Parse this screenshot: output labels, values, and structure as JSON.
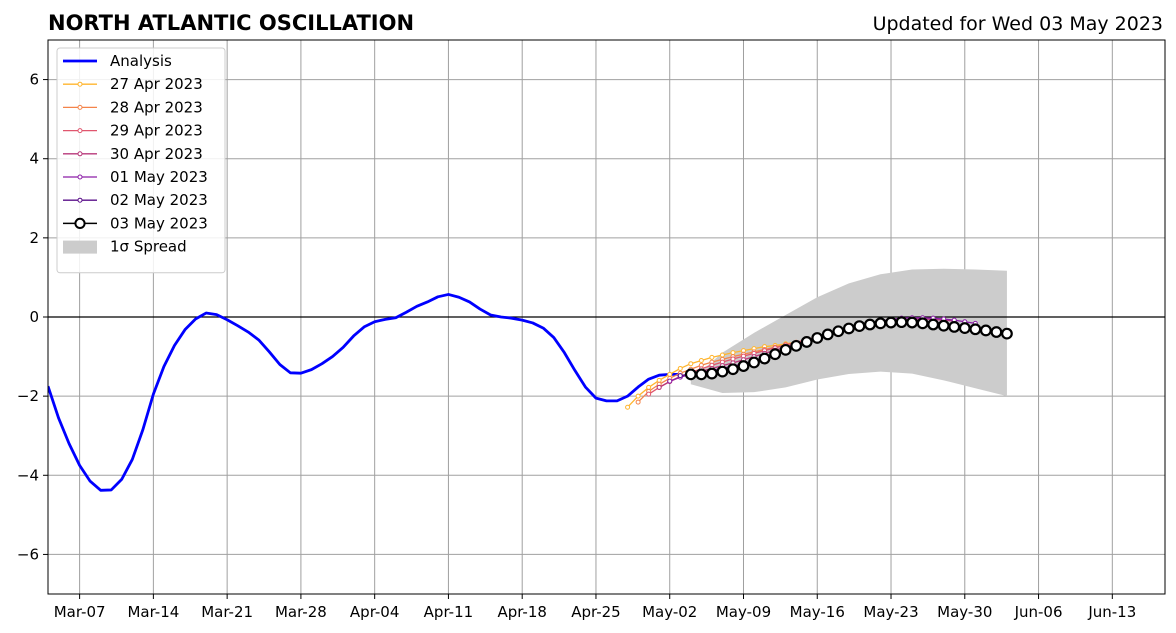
{
  "chart_data": {
    "type": "line",
    "title": "NORTH ATLANTIC OSCILLATION",
    "subtitle": "Updated for Wed 03 May 2023",
    "xlabel": "",
    "ylabel": "",
    "ylim": [
      -7,
      7
    ],
    "yticks": [
      -6,
      -4,
      -2,
      0,
      2,
      4,
      6
    ],
    "ytick_labels": [
      "−6",
      "−4",
      "−2",
      "0",
      "2",
      "4",
      "6"
    ],
    "xlim": [
      "2023-03-04",
      "2023-06-18"
    ],
    "xticks": [
      "2023-03-07",
      "2023-03-14",
      "2023-03-21",
      "2023-03-28",
      "2023-04-04",
      "2023-04-11",
      "2023-04-18",
      "2023-04-25",
      "2023-05-02",
      "2023-05-09",
      "2023-05-16",
      "2023-05-23",
      "2023-05-30",
      "2023-06-06",
      "2023-06-13"
    ],
    "xtick_labels": [
      "Mar-07",
      "Mar-14",
      "Mar-21",
      "Mar-28",
      "Apr-04",
      "Apr-11",
      "Apr-18",
      "Apr-25",
      "May-02",
      "May-09",
      "May-16",
      "May-23",
      "May-30",
      "Jun-06",
      "Jun-13"
    ],
    "grid": true,
    "legend_position": "upper-left",
    "zero_line": 0,
    "spread": {
      "name": "1σ Spread",
      "color": "#cccccc",
      "x": [
        "2023-05-04",
        "2023-05-07",
        "2023-05-10",
        "2023-05-13",
        "2023-05-16",
        "2023-05-19",
        "2023-05-22",
        "2023-05-25",
        "2023-05-28",
        "2023-05-31",
        "2023-06-03"
      ],
      "upper": [
        -1.6,
        -0.9,
        -0.4,
        0.05,
        0.5,
        0.85,
        1.08,
        1.2,
        1.22,
        1.2,
        1.17
      ],
      "lower": [
        -1.7,
        -1.92,
        -1.9,
        -1.78,
        -1.58,
        -1.44,
        -1.38,
        -1.43,
        -1.6,
        -1.8,
        -2.0
      ]
    },
    "series": [
      {
        "name": "Analysis",
        "color": "#0000ff",
        "style": "thick",
        "x": [
          "2023-03-04",
          "2023-03-05",
          "2023-03-06",
          "2023-03-07",
          "2023-03-08",
          "2023-03-09",
          "2023-03-10",
          "2023-03-11",
          "2023-03-12",
          "2023-03-13",
          "2023-03-14",
          "2023-03-15",
          "2023-03-16",
          "2023-03-17",
          "2023-03-18",
          "2023-03-19",
          "2023-03-20",
          "2023-03-21",
          "2023-03-22",
          "2023-03-23",
          "2023-03-24",
          "2023-03-25",
          "2023-03-26",
          "2023-03-27",
          "2023-03-28",
          "2023-03-29",
          "2023-03-30",
          "2023-03-31",
          "2023-04-01",
          "2023-04-02",
          "2023-04-03",
          "2023-04-04",
          "2023-04-05",
          "2023-04-06",
          "2023-04-07",
          "2023-04-08",
          "2023-04-09",
          "2023-04-10",
          "2023-04-11",
          "2023-04-12",
          "2023-04-13",
          "2023-04-14",
          "2023-04-15",
          "2023-04-16",
          "2023-04-17",
          "2023-04-18",
          "2023-04-19",
          "2023-04-20",
          "2023-04-21",
          "2023-04-22",
          "2023-04-23",
          "2023-04-24",
          "2023-04-25",
          "2023-04-26",
          "2023-04-27",
          "2023-04-28",
          "2023-04-29",
          "2023-04-30",
          "2023-05-01",
          "2023-05-02",
          "2023-05-03"
        ],
        "values": [
          -1.75,
          -2.55,
          -3.2,
          -3.75,
          -4.15,
          -4.38,
          -4.37,
          -4.1,
          -3.6,
          -2.85,
          -1.95,
          -1.25,
          -0.72,
          -0.32,
          -0.05,
          0.1,
          0.06,
          -0.07,
          -0.22,
          -0.38,
          -0.58,
          -0.88,
          -1.2,
          -1.41,
          -1.42,
          -1.33,
          -1.18,
          -1.0,
          -0.77,
          -0.48,
          -0.25,
          -0.12,
          -0.06,
          -0.02,
          0.12,
          0.27,
          0.38,
          0.51,
          0.57,
          0.5,
          0.38,
          0.2,
          0.05,
          0.0,
          -0.03,
          -0.08,
          -0.15,
          -0.28,
          -0.52,
          -0.9,
          -1.35,
          -1.77,
          -2.05,
          -2.12,
          -2.12,
          -2.0,
          -1.77,
          -1.57,
          -1.47,
          -1.45,
          -1.45
        ]
      },
      {
        "name": "27 Apr 2023",
        "color": "#ffb52e",
        "style": "small-marker",
        "x": [
          "2023-04-28",
          "2023-04-29",
          "2023-04-30",
          "2023-05-01",
          "2023-05-02",
          "2023-05-03",
          "2023-05-04",
          "2023-05-05",
          "2023-05-06",
          "2023-05-07",
          "2023-05-08",
          "2023-05-09",
          "2023-05-10",
          "2023-05-11",
          "2023-05-12",
          "2023-05-13",
          "2023-05-14",
          "2023-05-15",
          "2023-05-16"
        ],
        "values": [
          -2.28,
          -2.0,
          -1.78,
          -1.6,
          -1.45,
          -1.3,
          -1.18,
          -1.1,
          -1.02,
          -0.96,
          -0.9,
          -0.85,
          -0.8,
          -0.75,
          -0.72,
          -0.68,
          -0.64,
          -0.6,
          -0.58
        ]
      },
      {
        "name": "28 Apr 2023",
        "color": "#f4844a",
        "style": "small-marker",
        "x": [
          "2023-04-29",
          "2023-04-30",
          "2023-05-01",
          "2023-05-02",
          "2023-05-03",
          "2023-05-04",
          "2023-05-05",
          "2023-05-06",
          "2023-05-07",
          "2023-05-08",
          "2023-05-09",
          "2023-05-10",
          "2023-05-11",
          "2023-05-12",
          "2023-05-13",
          "2023-05-14",
          "2023-05-15",
          "2023-05-16",
          "2023-05-17",
          "2023-05-18",
          "2023-05-19",
          "2023-05-20",
          "2023-05-21",
          "2023-05-22",
          "2023-05-23"
        ],
        "values": [
          -2.15,
          -1.88,
          -1.7,
          -1.55,
          -1.42,
          -1.32,
          -1.22,
          -1.14,
          -1.07,
          -1.0,
          -0.94,
          -0.88,
          -0.82,
          -0.76,
          -0.7,
          -0.64,
          -0.58,
          -0.52,
          -0.46,
          -0.4,
          -0.34,
          -0.28,
          -0.22,
          -0.18,
          -0.15
        ]
      },
      {
        "name": "29 Apr 2023",
        "color": "#e0566e",
        "style": "small-marker",
        "x": [
          "2023-04-30",
          "2023-05-01",
          "2023-05-02",
          "2023-05-03",
          "2023-05-04",
          "2023-05-05",
          "2023-05-06",
          "2023-05-07",
          "2023-05-08",
          "2023-05-09",
          "2023-05-10",
          "2023-05-11",
          "2023-05-12",
          "2023-05-13",
          "2023-05-14",
          "2023-05-15",
          "2023-05-16",
          "2023-05-17",
          "2023-05-18",
          "2023-05-19",
          "2023-05-20",
          "2023-05-21",
          "2023-05-22",
          "2023-05-23",
          "2023-05-24",
          "2023-05-25",
          "2023-05-26"
        ],
        "values": [
          -1.95,
          -1.78,
          -1.63,
          -1.5,
          -1.4,
          -1.31,
          -1.22,
          -1.14,
          -1.06,
          -0.99,
          -0.92,
          -0.85,
          -0.78,
          -0.71,
          -0.64,
          -0.57,
          -0.5,
          -0.44,
          -0.38,
          -0.32,
          -0.27,
          -0.22,
          -0.18,
          -0.15,
          -0.12,
          -0.1,
          -0.09
        ]
      },
      {
        "name": "30 Apr 2023",
        "color": "#b73779",
        "style": "small-marker",
        "x": [
          "2023-05-01",
          "2023-05-02",
          "2023-05-03",
          "2023-05-04",
          "2023-05-05",
          "2023-05-06",
          "2023-05-07",
          "2023-05-08",
          "2023-05-09",
          "2023-05-10",
          "2023-05-11",
          "2023-05-12",
          "2023-05-13",
          "2023-05-14",
          "2023-05-15",
          "2023-05-16",
          "2023-05-17",
          "2023-05-18",
          "2023-05-19",
          "2023-05-20",
          "2023-05-21",
          "2023-05-22",
          "2023-05-23",
          "2023-05-24",
          "2023-05-25",
          "2023-05-26",
          "2023-05-27",
          "2023-05-28",
          "2023-05-29"
        ],
        "values": [
          -1.78,
          -1.63,
          -1.52,
          -1.44,
          -1.37,
          -1.3,
          -1.23,
          -1.16,
          -1.08,
          -1.0,
          -0.92,
          -0.84,
          -0.76,
          -0.68,
          -0.6,
          -0.52,
          -0.45,
          -0.38,
          -0.31,
          -0.25,
          -0.2,
          -0.15,
          -0.11,
          -0.08,
          -0.06,
          -0.05,
          -0.06,
          -0.08,
          -0.1
        ]
      },
      {
        "name": "01 May 2023",
        "color": "#8c1fa8",
        "style": "small-marker",
        "x": [
          "2023-05-02",
          "2023-05-03",
          "2023-05-04",
          "2023-05-05",
          "2023-05-06",
          "2023-05-07",
          "2023-05-08",
          "2023-05-09",
          "2023-05-10",
          "2023-05-11",
          "2023-05-12",
          "2023-05-13",
          "2023-05-14",
          "2023-05-15",
          "2023-05-16",
          "2023-05-17",
          "2023-05-18",
          "2023-05-19",
          "2023-05-20",
          "2023-05-21",
          "2023-05-22",
          "2023-05-23",
          "2023-05-24",
          "2023-05-25",
          "2023-05-26",
          "2023-05-27",
          "2023-05-28",
          "2023-05-29",
          "2023-05-30",
          "2023-05-31"
        ],
        "values": [
          -1.62,
          -1.52,
          -1.45,
          -1.4,
          -1.35,
          -1.3,
          -1.24,
          -1.18,
          -1.1,
          -1.02,
          -0.93,
          -0.84,
          -0.74,
          -0.64,
          -0.55,
          -0.45,
          -0.37,
          -0.29,
          -0.22,
          -0.16,
          -0.1,
          -0.06,
          -0.03,
          -0.02,
          -0.02,
          -0.03,
          -0.05,
          -0.08,
          -0.12,
          -0.16
        ]
      },
      {
        "name": "02 May 2023",
        "color": "#5a0f8a",
        "style": "small-marker",
        "x": [
          "2023-05-03",
          "2023-05-04",
          "2023-05-05",
          "2023-05-06",
          "2023-05-07",
          "2023-05-08",
          "2023-05-09",
          "2023-05-10",
          "2023-05-11",
          "2023-05-12",
          "2023-05-13",
          "2023-05-14",
          "2023-05-15",
          "2023-05-16",
          "2023-05-17",
          "2023-05-18",
          "2023-05-19",
          "2023-05-20",
          "2023-05-21",
          "2023-05-22",
          "2023-05-23",
          "2023-05-24",
          "2023-05-25",
          "2023-05-26",
          "2023-05-27",
          "2023-05-28",
          "2023-05-29",
          "2023-05-30",
          "2023-05-31",
          "2023-06-01"
        ],
        "values": [
          -1.48,
          -1.45,
          -1.43,
          -1.4,
          -1.36,
          -1.3,
          -1.22,
          -1.13,
          -1.03,
          -0.93,
          -0.83,
          -0.73,
          -0.63,
          -0.53,
          -0.44,
          -0.36,
          -0.29,
          -0.22,
          -0.17,
          -0.13,
          -0.1,
          -0.08,
          -0.08,
          -0.1,
          -0.13,
          -0.16,
          -0.2,
          -0.25,
          -0.3,
          -0.35
        ]
      },
      {
        "name": "03 May 2023",
        "color": "#000000",
        "style": "big-marker",
        "x": [
          "2023-05-04",
          "2023-05-05",
          "2023-05-06",
          "2023-05-07",
          "2023-05-08",
          "2023-05-09",
          "2023-05-10",
          "2023-05-11",
          "2023-05-12",
          "2023-05-13",
          "2023-05-14",
          "2023-05-15",
          "2023-05-16",
          "2023-05-17",
          "2023-05-18",
          "2023-05-19",
          "2023-05-20",
          "2023-05-21",
          "2023-05-22",
          "2023-05-23",
          "2023-05-24",
          "2023-05-25",
          "2023-05-26",
          "2023-05-27",
          "2023-05-28",
          "2023-05-29",
          "2023-05-30",
          "2023-05-31",
          "2023-06-01",
          "2023-06-02",
          "2023-06-03"
        ],
        "values": [
          -1.45,
          -1.45,
          -1.43,
          -1.38,
          -1.32,
          -1.24,
          -1.15,
          -1.05,
          -0.94,
          -0.83,
          -0.73,
          -0.63,
          -0.53,
          -0.44,
          -0.36,
          -0.29,
          -0.23,
          -0.19,
          -0.16,
          -0.14,
          -0.13,
          -0.14,
          -0.16,
          -0.19,
          -0.22,
          -0.25,
          -0.28,
          -0.31,
          -0.34,
          -0.38,
          -0.42
        ]
      }
    ]
  }
}
